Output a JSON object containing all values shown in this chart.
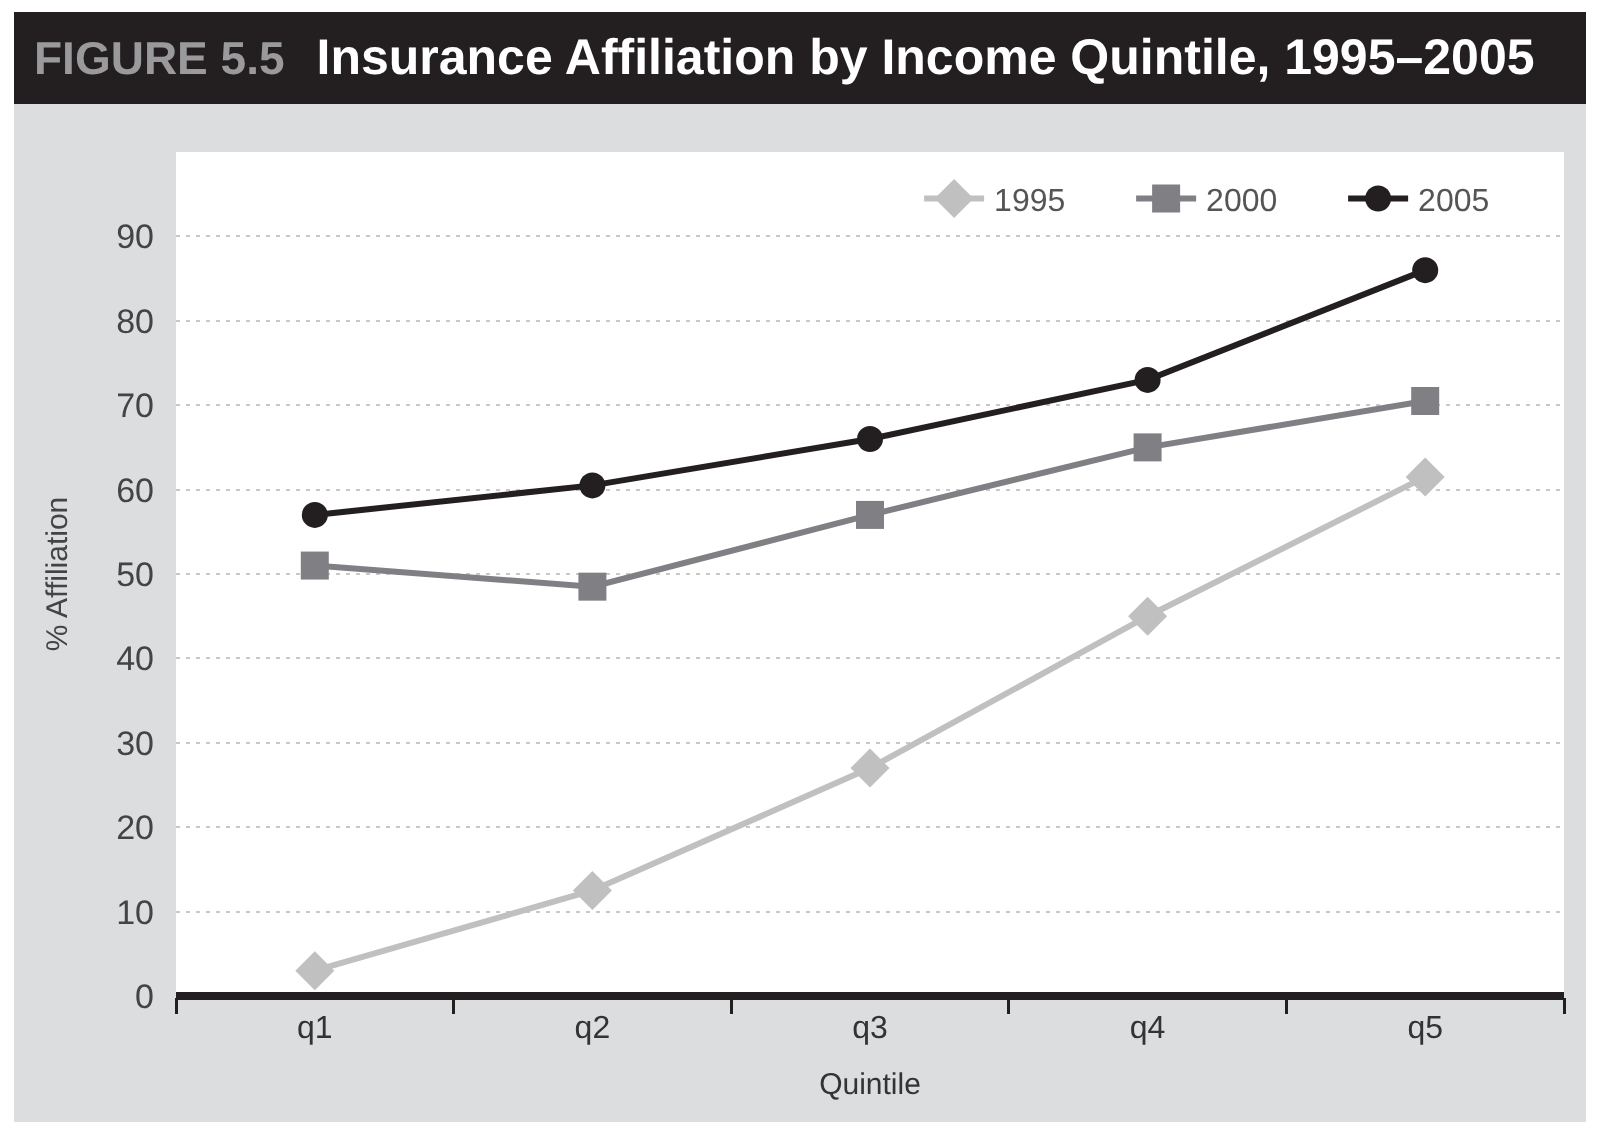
{
  "chart_data": {
    "type": "line",
    "title": "Insurance Affiliation by Income Quintile, 1995–2005",
    "annotations": [
      "FIGURE 5.5"
    ],
    "xlabel": "Quintile",
    "ylabel": "% Affiliation",
    "categories": [
      "q1",
      "q2",
      "q3",
      "q4",
      "q5"
    ],
    "series": [
      {
        "name": "1995",
        "color": "#c0c0c0",
        "marker": "diamond",
        "values": [
          3,
          12.5,
          27,
          45,
          61.5
        ]
      },
      {
        "name": "2000",
        "color": "#808084",
        "marker": "square",
        "values": [
          51,
          48.5,
          57,
          65,
          70.5
        ]
      },
      {
        "name": "2005",
        "color": "#231f20",
        "marker": "circle",
        "values": [
          57,
          60.5,
          66,
          73,
          86
        ]
      }
    ],
    "ylim": [
      0,
      100
    ],
    "yticks": [
      0,
      10,
      20,
      30,
      40,
      50,
      60,
      70,
      80,
      90
    ],
    "grid": "y",
    "legend": "top right",
    "line_style": "solid"
  }
}
